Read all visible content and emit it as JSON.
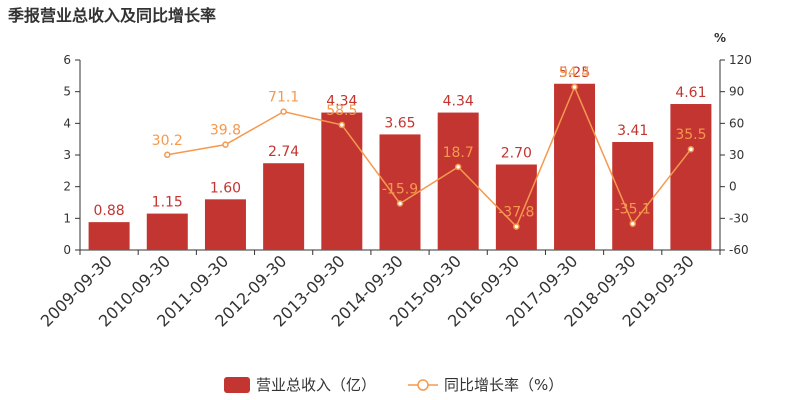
{
  "title": "季报营业总收入及同比增长率",
  "colors": {
    "bar": "#c23531",
    "line": "#f5994e",
    "axis": "#333333",
    "grid": "#eeeeee"
  },
  "chart_data": {
    "type": "bar",
    "categories": [
      "2009-09-30",
      "2010-09-30",
      "2011-09-30",
      "2012-09-30",
      "2013-09-30",
      "2014-09-30",
      "2015-09-30",
      "2016-09-30",
      "2017-09-30",
      "2018-09-30",
      "2019-09-30"
    ],
    "series": [
      {
        "name": "营业总收入（亿）",
        "type": "bar",
        "axis": "left",
        "values": [
          0.88,
          1.15,
          1.6,
          2.74,
          4.34,
          3.65,
          4.34,
          2.7,
          5.25,
          3.41,
          4.61
        ],
        "labels": [
          "0.88",
          "1.15",
          "1.60",
          "2.74",
          "4.34",
          "3.65",
          "4.34",
          "2.70",
          "5.25",
          "3.41",
          "4.61"
        ]
      },
      {
        "name": "同比增长率（%）",
        "type": "line",
        "axis": "right",
        "values": [
          null,
          30.2,
          39.8,
          71.1,
          58.5,
          -15.9,
          18.7,
          -37.8,
          94.4,
          -35.1,
          35.5
        ],
        "labels": [
          "",
          "30.2",
          "39.8",
          "71.1",
          "58.5",
          "-15.9",
          "18.7",
          "-37.8",
          "94.4",
          "-35.1",
          "35.5"
        ]
      }
    ],
    "y_left": {
      "range": [
        0,
        6
      ],
      "ticks": [
        "0",
        "1",
        "2",
        "3",
        "4",
        "5",
        "6"
      ]
    },
    "y_right": {
      "unit": "%",
      "range": [
        -60,
        120
      ],
      "ticks": [
        "-60",
        "-30",
        "0",
        "30",
        "60",
        "90",
        "120"
      ]
    },
    "legend_position": "bottom-center",
    "grid": false
  }
}
